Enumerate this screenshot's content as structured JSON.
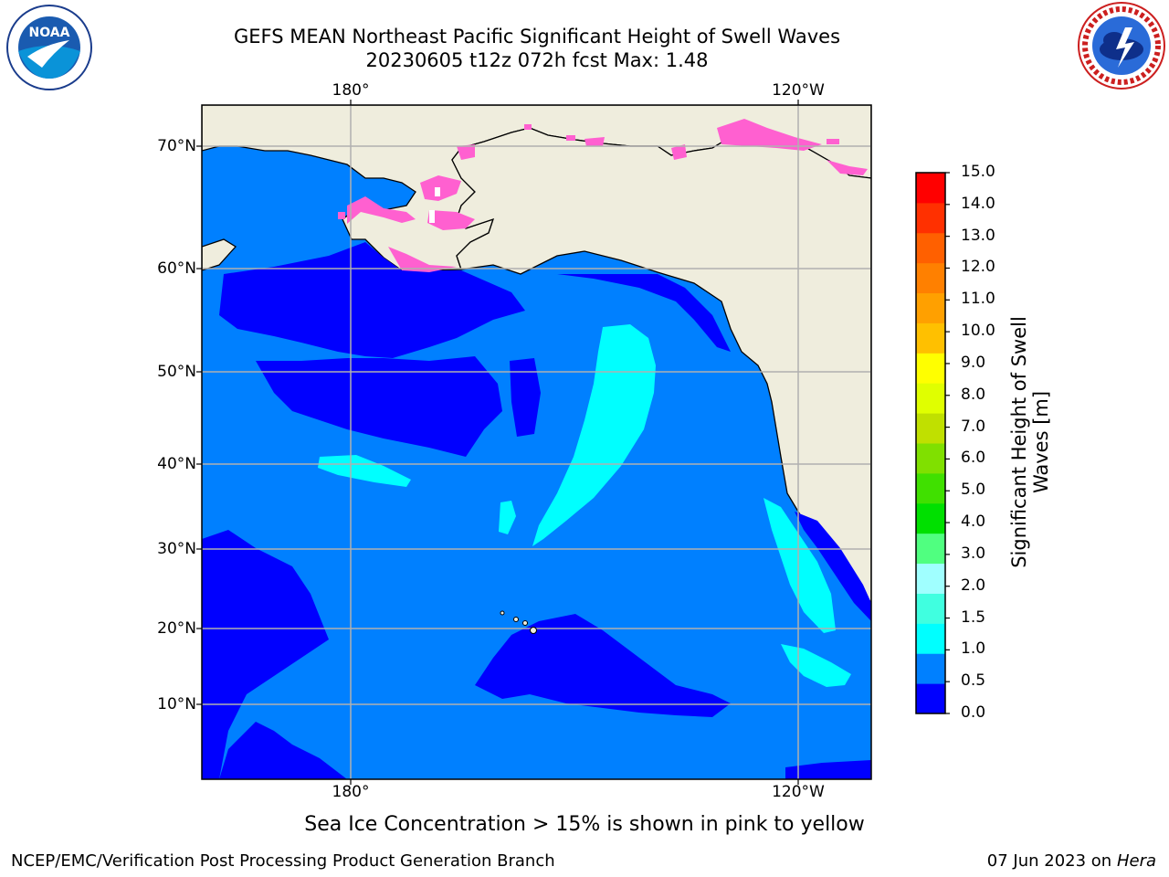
{
  "title": {
    "line1": "GEFS MEAN Northeast Pacific Significant Height of Swell Waves",
    "line2": "20230605 t12z 072h fcst   Max: 1.48"
  },
  "axes": {
    "lon_top": [
      "180°",
      "120°W"
    ],
    "lon_bottom": [
      "180°",
      "120°W"
    ],
    "lat": [
      "70°N",
      "60°N",
      "50°N",
      "40°N",
      "30°N",
      "20°N",
      "10°N"
    ]
  },
  "colorbar": {
    "label_line1": "Significant Height of Swell",
    "label_line2": "Waves [m]",
    "ticks": [
      "15.0",
      "14.0",
      "13.0",
      "12.0",
      "11.0",
      "10.0",
      "9.0",
      "8.0",
      "7.0",
      "6.0",
      "5.0",
      "4.0",
      "3.0",
      "2.0",
      "1.5",
      "1.0",
      "0.5",
      "0.0"
    ],
    "colors_bottom_to_top": [
      "#0000ff",
      "#0080ff",
      "#00ffff",
      "#40ffe0",
      "#a0ffff",
      "#50ff80",
      "#00e000",
      "#40e000",
      "#80e000",
      "#c0e000",
      "#e0ff00",
      "#ffff00",
      "#ffc000",
      "#ffa000",
      "#ff8000",
      "#ff6000",
      "#ff3000",
      "#ff0000"
    ]
  },
  "colors": {
    "land": "#efeddd",
    "ocean_base": "#0080ff",
    "low_swell": "#0000ff",
    "mid_swell": "#00ffff",
    "sea_ice": "#ff60d0"
  },
  "logos": {
    "left": "NOAA",
    "right": "NATIONAL WEATHER SERVICE"
  },
  "note": "Sea Ice Concentration > 15% is shown in pink to yellow",
  "footer": {
    "left": "NCEP/EMC/Verification Post Processing Product Generation Branch",
    "right_date": "07 Jun 2023 on",
    "right_system": "Hera"
  }
}
